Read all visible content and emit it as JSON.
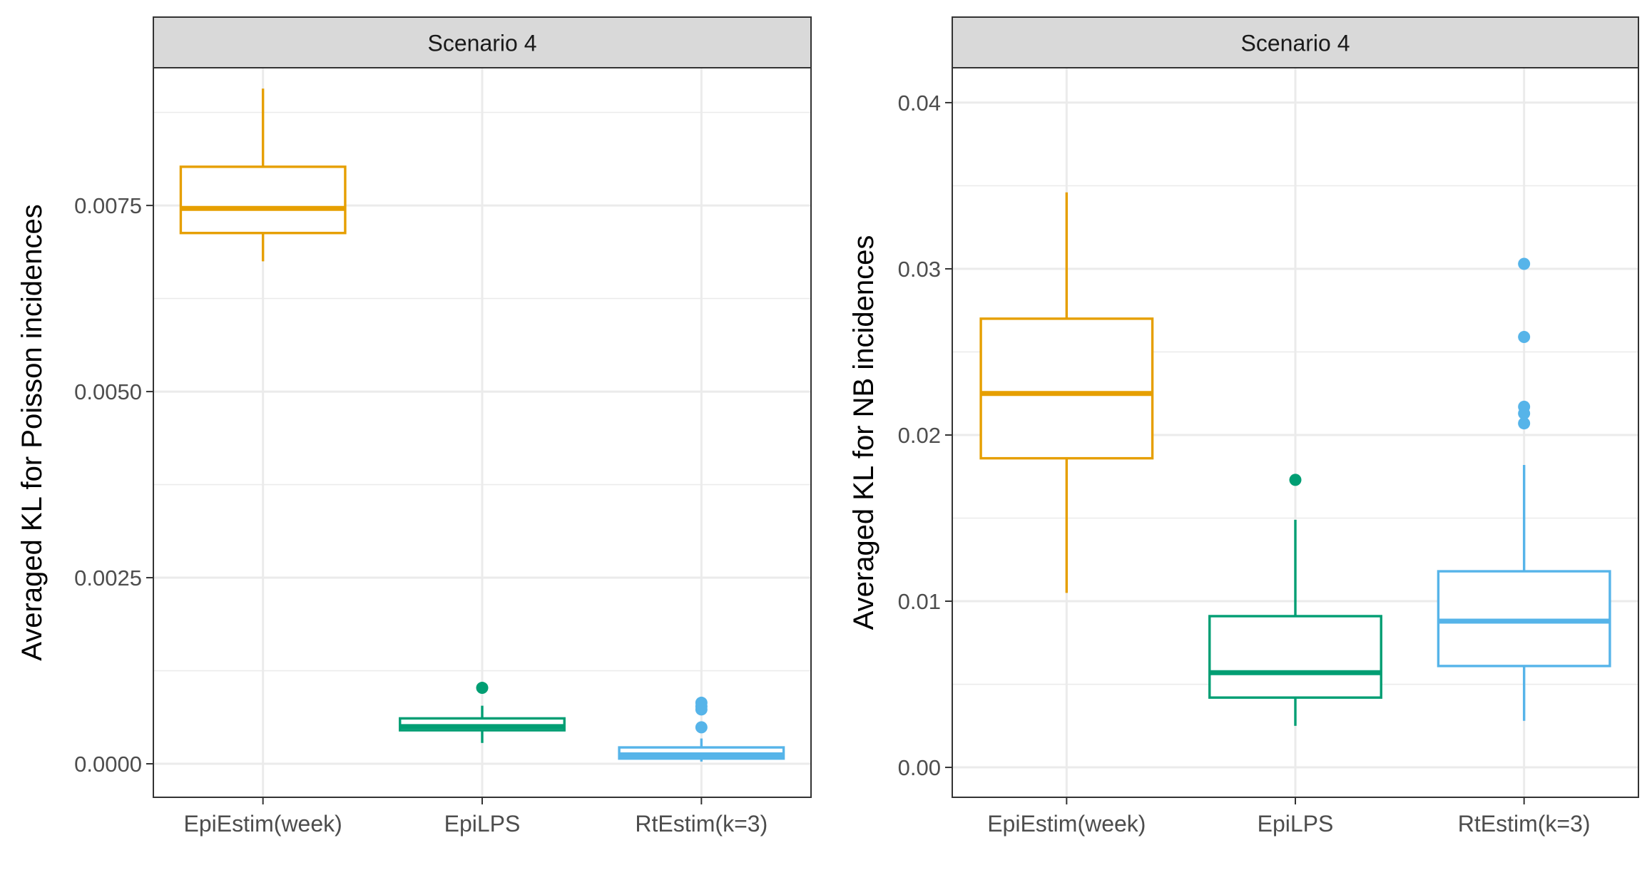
{
  "chart_data": [
    {
      "type": "box",
      "strip_label": "Scenario 4",
      "xlabel": "",
      "ylabel": "Averaged KL for Poisson incidences",
      "categories": [
        "EpiEstim(week)",
        "EpiLPS",
        "RtEstim(k=3)"
      ],
      "ylim": [
        -0.00045,
        0.00935
      ],
      "yticks": [
        0.0,
        0.0025,
        0.005,
        0.0075
      ],
      "ytick_labels": [
        "0.0000",
        "0.0025",
        "0.0050",
        "0.0075"
      ],
      "grid": true,
      "legend": "none",
      "colors": [
        "#E69F00",
        "#009E73",
        "#56B4E9"
      ],
      "boxes": [
        {
          "category": "EpiEstim(week)",
          "whisker_low": 0.00675,
          "q1": 0.00713,
          "median": 0.00746,
          "q3": 0.00802,
          "whisker_high": 0.00907,
          "outliers": []
        },
        {
          "category": "EpiLPS",
          "whisker_low": 0.00028,
          "q1": 0.00045,
          "median": 0.0005,
          "q3": 0.00061,
          "whisker_high": 0.00078,
          "outliers": [
            0.00102
          ]
        },
        {
          "category": "RtEstim(k=3)",
          "whisker_low": 3e-05,
          "q1": 7e-05,
          "median": 0.00012,
          "q3": 0.00022,
          "whisker_high": 0.00034,
          "outliers": [
            0.00049,
            0.00073,
            0.00077,
            0.00082
          ]
        }
      ]
    },
    {
      "type": "box",
      "strip_label": "Scenario 4",
      "xlabel": "",
      "ylabel": "Averaged KL for NB incidences",
      "categories": [
        "EpiEstim(week)",
        "EpiLPS",
        "RtEstim(k=3)"
      ],
      "ylim": [
        -0.0018,
        0.0421
      ],
      "yticks": [
        0.0,
        0.01,
        0.02,
        0.03,
        0.04
      ],
      "ytick_labels": [
        "0.00",
        "0.01",
        "0.02",
        "0.03",
        "0.04"
      ],
      "grid": true,
      "legend": "none",
      "colors": [
        "#E69F00",
        "#009E73",
        "#56B4E9"
      ],
      "boxes": [
        {
          "category": "EpiEstim(week)",
          "whisker_low": 0.0105,
          "q1": 0.0186,
          "median": 0.0225,
          "q3": 0.027,
          "whisker_high": 0.0346,
          "outliers": []
        },
        {
          "category": "EpiLPS",
          "whisker_low": 0.0025,
          "q1": 0.0042,
          "median": 0.0057,
          "q3": 0.0091,
          "whisker_high": 0.0149,
          "outliers": [
            0.0173
          ]
        },
        {
          "category": "RtEstim(k=3)",
          "whisker_low": 0.0028,
          "q1": 0.0061,
          "median": 0.0088,
          "q3": 0.0118,
          "whisker_high": 0.0182,
          "outliers": [
            0.0207,
            0.0213,
            0.0217,
            0.0259,
            0.0303
          ]
        }
      ]
    }
  ]
}
